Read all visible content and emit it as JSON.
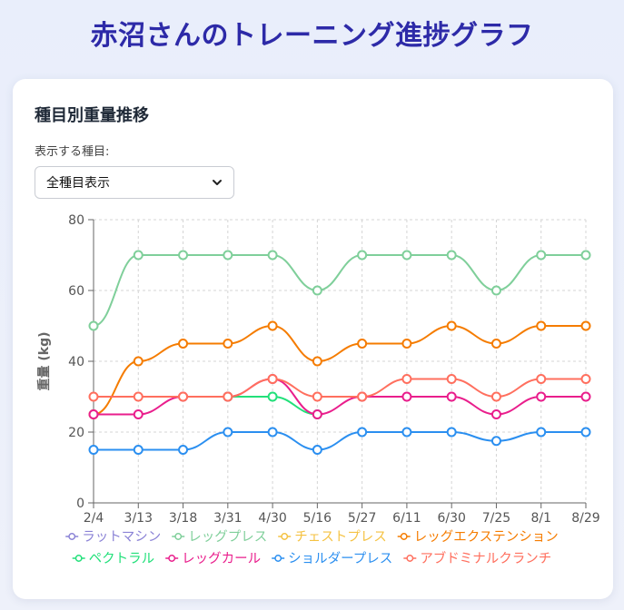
{
  "page": {
    "title": "赤沼さんのトレーニング進捗グラフ"
  },
  "card": {
    "title": "種目別重量推移",
    "filter_label": "表示する種目:",
    "filter_value": "全種目表示"
  },
  "chart_data": {
    "type": "line",
    "xlabel": "",
    "ylabel": "重量 (kg)",
    "ylim": [
      0,
      80
    ],
    "yticks": [
      0,
      20,
      40,
      60,
      80
    ],
    "grid": true,
    "legend_position": "bottom",
    "categories": [
      "2/4",
      "3/13",
      "3/18",
      "3/31",
      "4/30",
      "5/16",
      "5/27",
      "6/11",
      "6/30",
      "7/25",
      "8/1",
      "8/29"
    ],
    "series": [
      {
        "name": "ラットマシン",
        "color": "#8b83d6",
        "values": [
          null,
          null,
          null,
          null,
          null,
          null,
          null,
          null,
          null,
          null,
          null,
          null
        ]
      },
      {
        "name": "レッグプレス",
        "color": "#7fcf9a",
        "values": [
          50,
          70,
          70,
          70,
          70,
          60,
          70,
          70,
          70,
          60,
          70,
          70
        ]
      },
      {
        "name": "チェストプレス",
        "color": "#f5c242",
        "values": [
          null,
          null,
          null,
          null,
          null,
          null,
          null,
          null,
          null,
          null,
          null,
          null
        ]
      },
      {
        "name": "レッグエクステンション",
        "color": "#f57c00",
        "values": [
          25,
          40,
          45,
          45,
          50,
          40,
          45,
          45,
          50,
          45,
          50,
          50
        ]
      },
      {
        "name": "ペクトラル",
        "color": "#22e07a",
        "values": [
          null,
          null,
          null,
          30,
          30,
          25,
          null,
          null,
          null,
          null,
          null,
          null
        ]
      },
      {
        "name": "レッグカール",
        "color": "#e91e8c",
        "values": [
          25,
          25,
          30,
          30,
          35,
          25,
          30,
          30,
          30,
          25,
          30,
          30
        ]
      },
      {
        "name": "ショルダープレス",
        "color": "#2b8ff0",
        "values": [
          15,
          15,
          15,
          20,
          20,
          15,
          20,
          20,
          20,
          17.5,
          20,
          20
        ]
      },
      {
        "name": "アブドミナルクランチ",
        "color": "#ff6f5e",
        "values": [
          30,
          30,
          30,
          30,
          35,
          30,
          30,
          35,
          35,
          30,
          35,
          35
        ]
      }
    ]
  }
}
